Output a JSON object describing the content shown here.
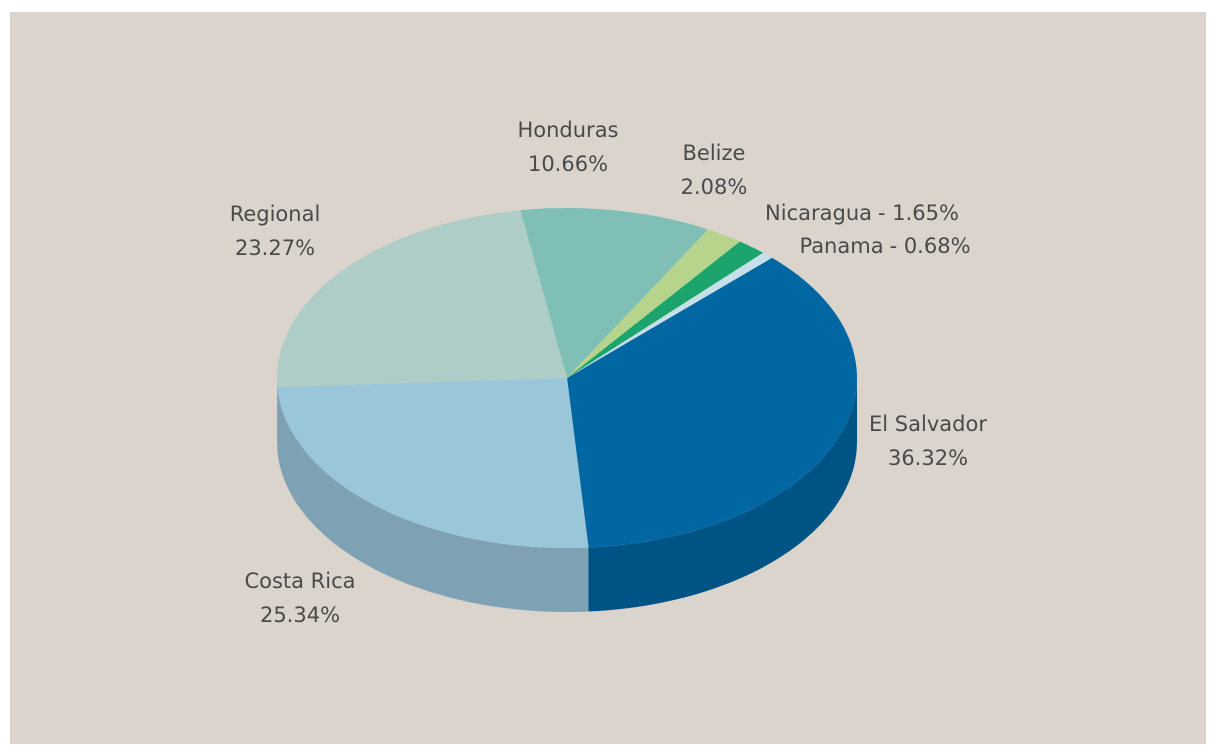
{
  "chart_data": {
    "type": "pie3d",
    "categories": [
      "El Salvador",
      "Costa Rica",
      "Regional",
      "Honduras",
      "Belize",
      "Nicaragua",
      "Panama"
    ],
    "values": [
      36.32,
      25.34,
      23.27,
      10.66,
      2.08,
      1.65,
      0.68
    ],
    "value_labels": [
      "36.32%",
      "25.34%",
      "23.27%",
      "10.66%",
      "2.08%",
      "- 1.65%",
      "- 0.68%"
    ],
    "colors": [
      "#0067a2",
      "#9ac6da",
      "#aecdc6",
      "#80bfb6",
      "#b6d48c",
      "#1ba56c",
      "#c7dfe8"
    ]
  }
}
